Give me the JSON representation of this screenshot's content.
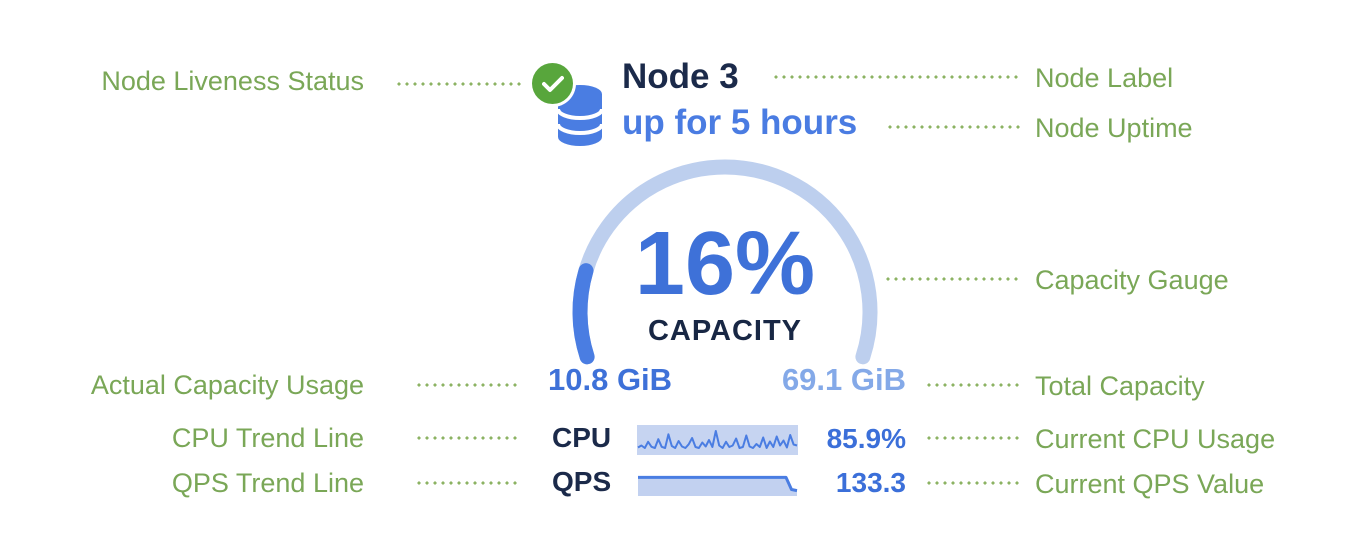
{
  "widget": {
    "node_label": "Node 3",
    "node_uptime": "up for 5 hours",
    "capacity_percent": "16%",
    "capacity_caption": "CAPACITY",
    "capacity_used": "10.8 GiB",
    "capacity_total": "69.1 GiB",
    "cpu_label": "CPU",
    "cpu_value": "85.9%",
    "qps_label": "QPS",
    "qps_value": "133.3"
  },
  "annotations": {
    "left": [
      "Node Liveness Status",
      "Actual Capacity Usage",
      "CPU Trend Line",
      "QPS Trend Line"
    ],
    "right": [
      "Node Label",
      "Node Uptime",
      "Capacity Gauge",
      "Total Capacity",
      "Current CPU Usage",
      "Current QPS Value"
    ]
  },
  "colors": {
    "annotation_green": "#7aa757",
    "leader_dot_green": "#8cb363",
    "liveness_badge_green": "#58a63c",
    "navy_text": "#1b2a4a",
    "value_blue": "#3b6fd9",
    "uptime_blue": "#4a7ce2",
    "gauge_track": "#bdcfee",
    "gauge_fill": "#4a7de2",
    "sparkline_bg": "#c6d4f1",
    "total_capacity_blue": "#84a9e8"
  },
  "chart_data": [
    {
      "type": "gauge",
      "name": "capacity-gauge",
      "title": "CAPACITY",
      "value_percent": 16,
      "used": "10.8 GiB",
      "total": "69.1 GiB",
      "arc_sweep_degrees": 216,
      "arc_start_degrees": 162
    },
    {
      "type": "line",
      "name": "cpu-sparkline",
      "current_value": "85.9%",
      "normalized_values": [
        0.22,
        0.3,
        0.2,
        0.45,
        0.25,
        0.2,
        0.55,
        0.25,
        0.2,
        0.75,
        0.28,
        0.2,
        0.48,
        0.26,
        0.2,
        0.35,
        0.6,
        0.24,
        0.2,
        0.42,
        0.26,
        0.52,
        0.24,
        0.88,
        0.3,
        0.2,
        0.45,
        0.24,
        0.3,
        0.58,
        0.2,
        0.24,
        0.7,
        0.26,
        0.2,
        0.36,
        0.24,
        0.62,
        0.2,
        0.46,
        0.24,
        0.66,
        0.3,
        0.5,
        0.22,
        0.72,
        0.34,
        0.3
      ]
    },
    {
      "type": "area",
      "name": "qps-sparkline",
      "current_value": "133.3",
      "normalized_values": [
        0.8,
        0.8,
        0.8,
        0.8,
        0.8,
        0.8,
        0.8,
        0.8,
        0.8,
        0.8,
        0.8,
        0.8,
        0.8,
        0.8,
        0.8,
        0.8,
        0.8,
        0.8,
        0.8,
        0.8,
        0.8,
        0.8,
        0.8,
        0.8,
        0.8,
        0.8,
        0.8,
        0.8,
        0.25,
        0.2
      ]
    }
  ]
}
